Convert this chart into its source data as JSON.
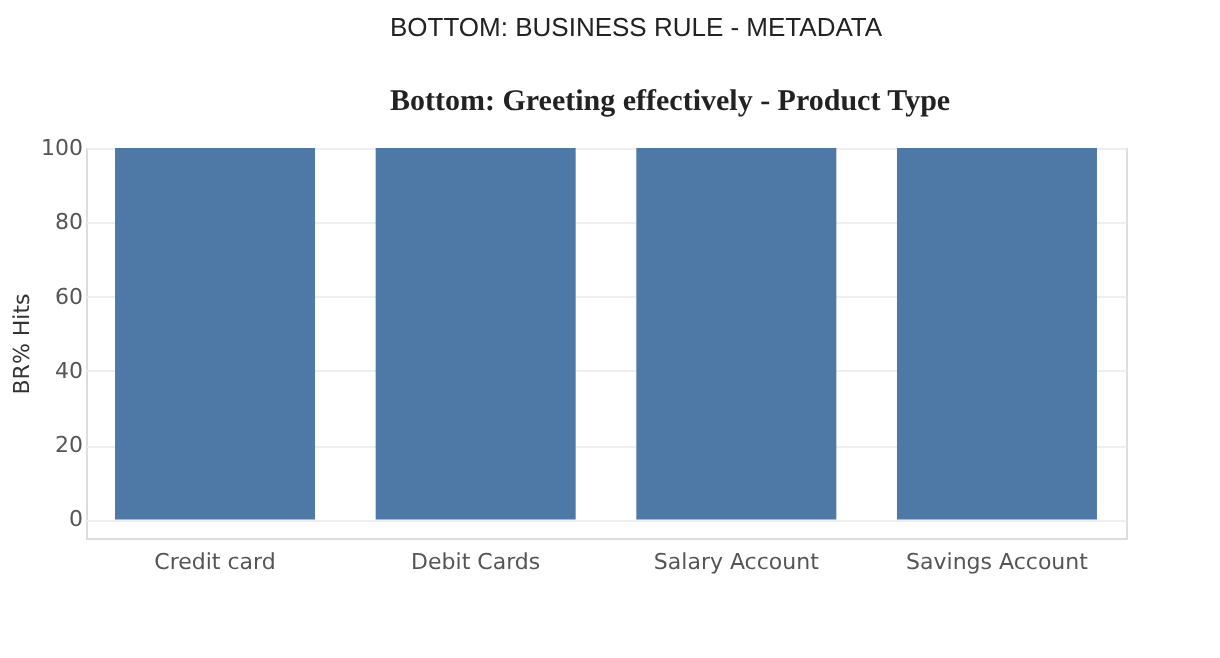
{
  "chart_data": {
    "type": "bar",
    "title": "BOTTOM: BUSINESS RULE - METADATA",
    "subtitle": "Bottom: Greeting effectively - Product Type",
    "ylabel": "BR% Hits",
    "categories": [
      "Credit card",
      "Debit Cards",
      "Salary Account",
      "Savings Account"
    ],
    "values": [
      100,
      100,
      100,
      100
    ],
    "color": "#4e79a7",
    "ylim": [
      -5,
      100
    ],
    "yticks": [
      0,
      20,
      40,
      60,
      80,
      100
    ],
    "grid": "y"
  }
}
